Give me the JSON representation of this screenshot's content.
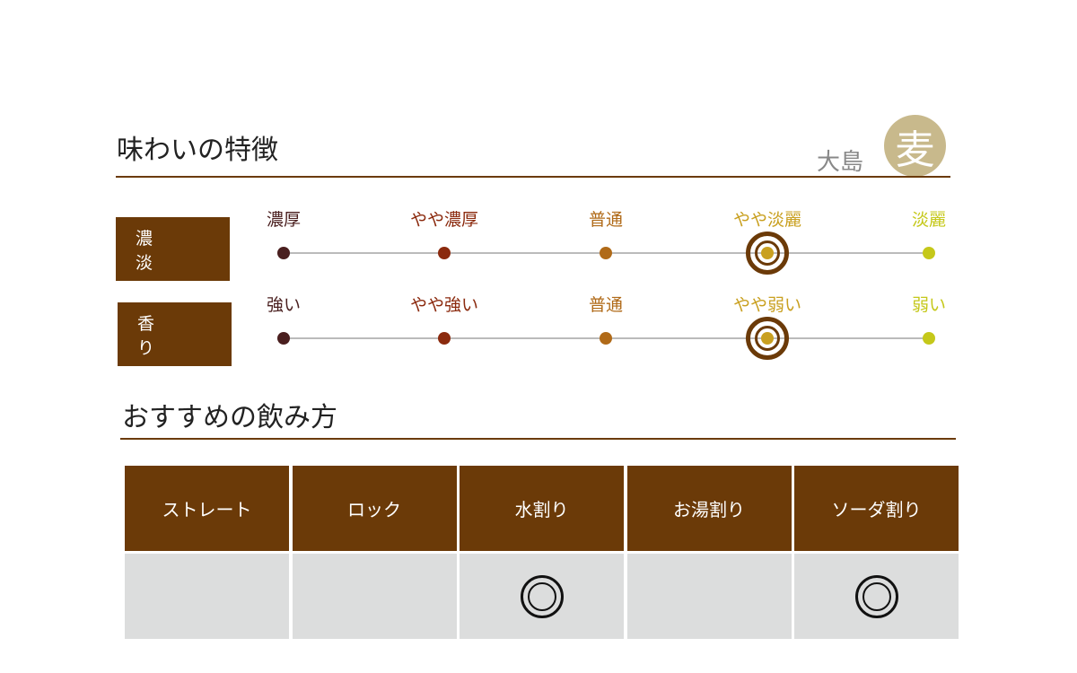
{
  "taste": {
    "title": "味わいの特徴",
    "region": "大島",
    "type_badge": "麦",
    "rows": [
      {
        "label": "濃　淡",
        "scale": [
          "濃厚",
          "やや濃厚",
          "普通",
          "やや淡麗",
          "淡麗"
        ],
        "selected": 3
      },
      {
        "label": "香　り",
        "scale": [
          "強い",
          "やや強い",
          "普通",
          "やや弱い",
          "弱い"
        ],
        "selected": 3
      }
    ],
    "colors": [
      "#4a1f1f",
      "#8b2a0e",
      "#b06a18",
      "#c9a020",
      "#c5c81a"
    ]
  },
  "drink": {
    "title": "おすすめの飲み方",
    "methods": [
      {
        "label": "ストレート",
        "recommended": false
      },
      {
        "label": "ロック",
        "recommended": false
      },
      {
        "label": "水割り",
        "recommended": true
      },
      {
        "label": "お湯割り",
        "recommended": false
      },
      {
        "label": "ソーダ割り",
        "recommended": true
      }
    ],
    "mark": "◎"
  }
}
